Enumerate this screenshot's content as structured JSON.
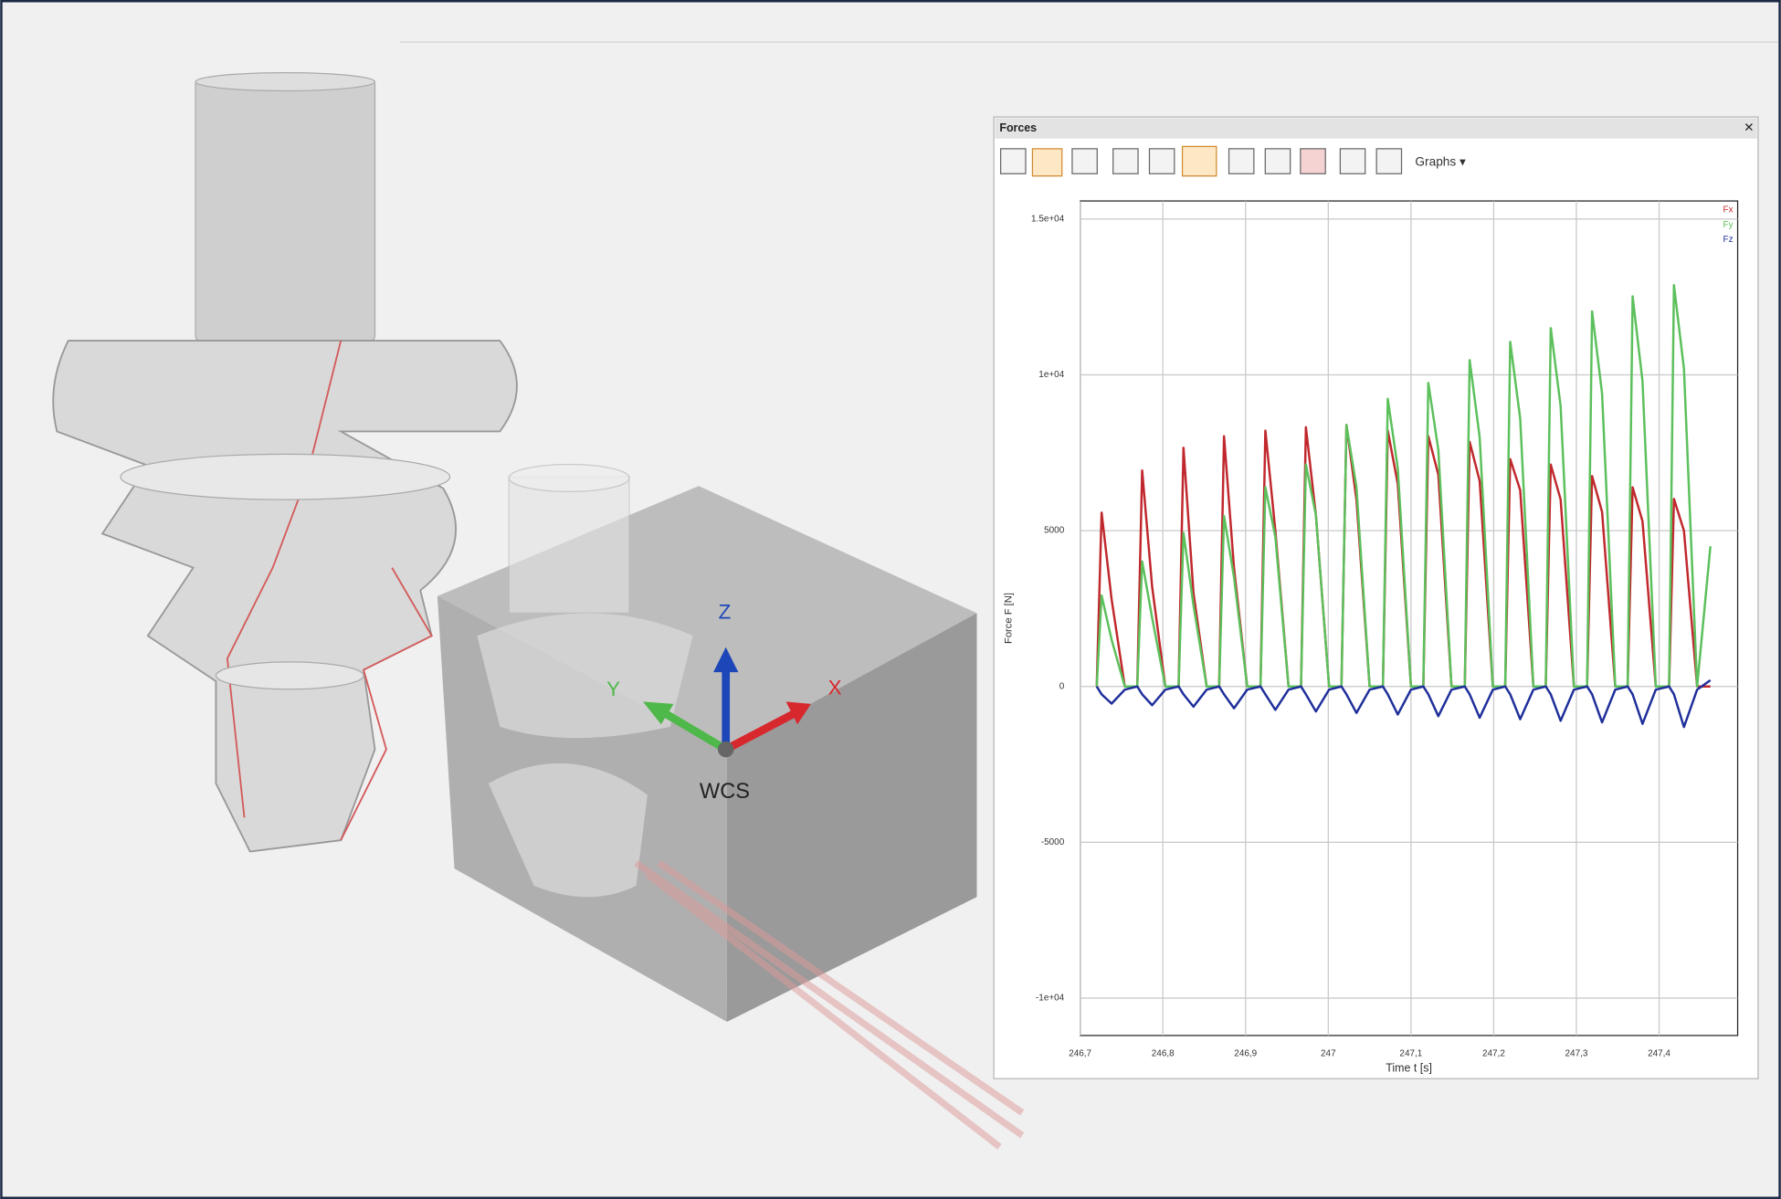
{
  "viewport": {
    "axis_z": "Z",
    "axis_y": "Y",
    "axis_x": "X",
    "frame": "WCS"
  },
  "panel": {
    "title": "Forces",
    "close": "✕",
    "graphs_menu": "Graphs ▾"
  },
  "chart_data": {
    "type": "line",
    "xlabel": "Time t [s]",
    "ylabel": "Force F [N]",
    "x": [
      246.72,
      246.726,
      246.738,
      246.754,
      246.769,
      246.775,
      246.787,
      246.803,
      246.819,
      246.825,
      246.837,
      246.853,
      246.868,
      246.874,
      246.886,
      246.902,
      246.918,
      246.924,
      246.936,
      246.952,
      246.967,
      246.973,
      246.985,
      247.001,
      247.016,
      247.022,
      247.034,
      247.05,
      247.066,
      247.072,
      247.084,
      247.1,
      247.115,
      247.121,
      247.133,
      247.149,
      247.165,
      247.171,
      247.183,
      247.199,
      247.214,
      247.22,
      247.232,
      247.248,
      247.263,
      247.269,
      247.281,
      247.297,
      247.313,
      247.319,
      247.331,
      247.347,
      247.362,
      247.368,
      247.38,
      247.396,
      247.412,
      247.418,
      247.43,
      247.446,
      247.462
    ],
    "series": [
      {
        "name": "Fx",
        "color": "#c0282d",
        "values": [
          0,
          5580,
          2800,
          0,
          0,
          6930,
          3200,
          0,
          0,
          7660,
          3000,
          0,
          0,
          8030,
          3800,
          0,
          0,
          8210,
          5000,
          0,
          0,
          8320,
          5500,
          0,
          0,
          8390,
          6000,
          0,
          0,
          8210,
          6500,
          0,
          0,
          8030,
          6800,
          0,
          0,
          7850,
          6600,
          0,
          0,
          7300,
          6300,
          0,
          0,
          7120,
          6000,
          0,
          0,
          6750,
          5600,
          0,
          0,
          6390,
          5300,
          0,
          0,
          6020,
          5000,
          0,
          0
        ]
      },
      {
        "name": "Fy",
        "color": "#5cc05c",
        "values": [
          0,
          2920,
          1500,
          0,
          0,
          4010,
          2200,
          0,
          0,
          4930,
          2600,
          0,
          0,
          5470,
          3500,
          0,
          0,
          6390,
          4800,
          0,
          0,
          7120,
          5500,
          0,
          0,
          8390,
          6400,
          0,
          0,
          9230,
          7000,
          0,
          0,
          9740,
          7600,
          0,
          0,
          10470,
          8000,
          0,
          0,
          11060,
          8600,
          0,
          0,
          11500,
          9000,
          0,
          0,
          12040,
          9400,
          0,
          0,
          12520,
          9800,
          0,
          0,
          12880,
          10200,
          0,
          4500
        ]
      },
      {
        "name": "Fz",
        "color": "#1f2f9a",
        "values": [
          0,
          -250,
          -550,
          -100,
          0,
          -250,
          -600,
          -100,
          0,
          -250,
          -650,
          -100,
          0,
          -250,
          -700,
          -100,
          0,
          -250,
          -750,
          -100,
          0,
          -250,
          -800,
          -100,
          0,
          -250,
          -850,
          -100,
          0,
          -250,
          -900,
          -100,
          0,
          -250,
          -950,
          -100,
          0,
          -250,
          -1000,
          -100,
          0,
          -250,
          -1050,
          -100,
          0,
          -250,
          -1100,
          -100,
          0,
          -250,
          -1150,
          -100,
          0,
          -250,
          -1200,
          -100,
          0,
          -250,
          -1300,
          -100,
          200
        ]
      }
    ],
    "xlim": [
      246.7,
      247.495
    ],
    "ylim": [
      -11200,
      15580
    ],
    "xticks": [
      {
        "value": 246.7,
        "label": "246,7"
      },
      {
        "value": 246.8,
        "label": "246,8"
      },
      {
        "value": 246.9,
        "label": "246,9"
      },
      {
        "value": 247,
        "label": "247"
      },
      {
        "value": 247.1,
        "label": "247,1"
      },
      {
        "value": 247.2,
        "label": "247,2"
      },
      {
        "value": 247.3,
        "label": "247,3"
      },
      {
        "value": 247.4,
        "label": "247,4"
      }
    ],
    "yticks": [
      {
        "value": 15000,
        "label": "1.5e+04"
      },
      {
        "value": 10000,
        "label": "1e+04"
      },
      5000,
      0,
      -5000,
      {
        "value": -10000,
        "label": "-1e+04"
      }
    ],
    "grid": true,
    "legend": "top-right"
  }
}
